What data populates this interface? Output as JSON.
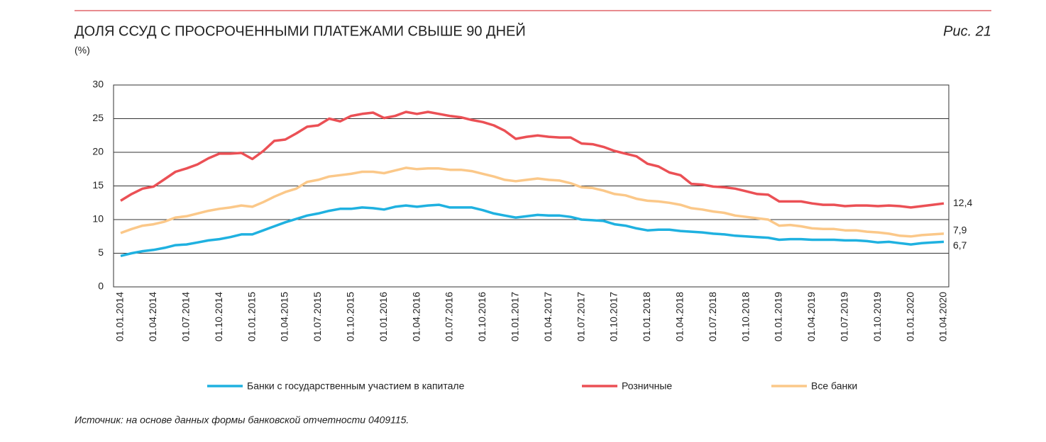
{
  "chart_data": {
    "type": "line",
    "title": "ДОЛЯ ССУД С ПРОСРОЧЕННЫМИ ПЛАТЕЖАМИ СВЫШЕ 90 ДНЕЙ",
    "subtitle": "(%)",
    "figure_label": "Рис. 21",
    "source": "Источник: на основе данных формы банковской отчетности 0409115.",
    "categories": [
      "01.01.2014",
      null,
      null,
      "01.04.2014",
      null,
      null,
      "01.07.2014",
      null,
      null,
      "01.10.2014",
      null,
      null,
      "01.01.2015",
      null,
      null,
      "01.04.2015",
      null,
      null,
      "01.07.2015",
      null,
      null,
      "01.10.2015",
      null,
      null,
      "01.01.2016",
      null,
      null,
      "01.04.2016",
      null,
      null,
      "01.07.2016",
      null,
      null,
      "01.10.2016",
      null,
      null,
      "01.01.2017",
      null,
      null,
      "01.04.2017",
      null,
      null,
      "01.07.2017",
      null,
      null,
      "01.10.2017",
      null,
      null,
      "01.01.2018",
      null,
      null,
      "01.04.2018",
      null,
      null,
      "01.07.2018",
      null,
      null,
      "01.10.2018",
      null,
      null,
      "01.01.2019",
      null,
      null,
      "01.04.2019",
      null,
      null,
      "01.07.2019",
      null,
      null,
      "01.10.2019",
      null,
      null,
      "01.01.2020",
      null,
      null,
      "01.04.2020"
    ],
    "series": [
      {
        "name": "Банки с государственным участием в капитале",
        "color": "#1fb1e0",
        "values": [
          4.6,
          5.0,
          5.3,
          5.5,
          5.8,
          6.2,
          6.3,
          6.6,
          6.9,
          7.1,
          7.4,
          7.8,
          7.8,
          8.4,
          9.0,
          9.6,
          10.1,
          10.6,
          10.9,
          11.3,
          11.6,
          11.6,
          11.8,
          11.7,
          11.5,
          11.9,
          12.1,
          11.9,
          12.1,
          12.2,
          11.8,
          11.8,
          11.8,
          11.4,
          10.9,
          10.6,
          10.3,
          10.5,
          10.7,
          10.6,
          10.6,
          10.4,
          10.0,
          9.9,
          9.8,
          9.3,
          9.1,
          8.7,
          8.4,
          8.5,
          8.5,
          8.3,
          8.2,
          8.1,
          7.9,
          7.8,
          7.6,
          7.5,
          7.4,
          7.3,
          7.0,
          7.1,
          7.1,
          7.0,
          7.0,
          7.0,
          6.9,
          6.9,
          6.8,
          6.6,
          6.7,
          6.5,
          6.3,
          6.5,
          6.6,
          6.7
        ],
        "value_labels": [
          null,
          null,
          null,
          null,
          null,
          null,
          null,
          null,
          null,
          null,
          null,
          null,
          null,
          null,
          null,
          null,
          null,
          null,
          null,
          null,
          null,
          null,
          null,
          null,
          null,
          null,
          null,
          null,
          null,
          null,
          null,
          null,
          null,
          null,
          null,
          null,
          null,
          null,
          null,
          null,
          null,
          null,
          null,
          null,
          null,
          null,
          null,
          null,
          null,
          null,
          null,
          null,
          null,
          null,
          null,
          null,
          null,
          null,
          null,
          null,
          null,
          null,
          null,
          null,
          null,
          null,
          null,
          null,
          null,
          null,
          null,
          null,
          null,
          null,
          null,
          "6,7"
        ]
      },
      {
        "name": "Розничные",
        "color": "#eb5055",
        "values": [
          12.8,
          13.8,
          14.6,
          14.9,
          16.0,
          17.1,
          17.6,
          18.2,
          19.1,
          19.8,
          19.8,
          19.9,
          19.0,
          20.2,
          21.7,
          21.9,
          22.8,
          23.8,
          24.0,
          25.0,
          24.6,
          25.4,
          25.7,
          25.9,
          25.1,
          25.4,
          26.0,
          25.7,
          26.0,
          25.7,
          25.4,
          25.2,
          24.8,
          24.5,
          24.0,
          23.2,
          22.0,
          22.3,
          22.5,
          22.3,
          22.2,
          22.2,
          21.3,
          21.2,
          20.8,
          20.2,
          19.8,
          19.4,
          18.3,
          17.9,
          17.0,
          16.6,
          15.3,
          15.2,
          14.9,
          14.8,
          14.6,
          14.2,
          13.8,
          13.7,
          12.7,
          12.7,
          12.7,
          12.4,
          12.2,
          12.2,
          12.0,
          12.1,
          12.1,
          12.0,
          12.1,
          12.0,
          11.8,
          12.0,
          12.2,
          12.4
        ],
        "value_labels": [
          null,
          null,
          null,
          null,
          null,
          null,
          null,
          null,
          null,
          null,
          null,
          null,
          null,
          null,
          null,
          null,
          null,
          null,
          null,
          null,
          null,
          null,
          null,
          null,
          null,
          null,
          null,
          null,
          null,
          null,
          null,
          null,
          null,
          null,
          null,
          null,
          null,
          null,
          null,
          null,
          null,
          null,
          null,
          null,
          null,
          null,
          null,
          null,
          null,
          null,
          null,
          null,
          null,
          null,
          null,
          null,
          null,
          null,
          null,
          null,
          null,
          null,
          null,
          null,
          null,
          null,
          null,
          null,
          null,
          null,
          null,
          null,
          null,
          null,
          null,
          "12,4"
        ]
      },
      {
        "name": "Все банки",
        "color": "#fbc889",
        "values": [
          8.0,
          8.6,
          9.1,
          9.3,
          9.7,
          10.3,
          10.5,
          10.9,
          11.3,
          11.6,
          11.8,
          12.1,
          11.9,
          12.6,
          13.4,
          14.1,
          14.6,
          15.6,
          15.9,
          16.4,
          16.6,
          16.8,
          17.1,
          17.1,
          16.9,
          17.3,
          17.7,
          17.5,
          17.6,
          17.6,
          17.4,
          17.4,
          17.2,
          16.8,
          16.4,
          15.9,
          15.7,
          15.9,
          16.1,
          15.9,
          15.8,
          15.4,
          14.8,
          14.7,
          14.3,
          13.8,
          13.6,
          13.1,
          12.8,
          12.7,
          12.5,
          12.2,
          11.7,
          11.5,
          11.2,
          11.0,
          10.6,
          10.4,
          10.2,
          10.0,
          9.1,
          9.2,
          9.0,
          8.7,
          8.6,
          8.6,
          8.4,
          8.4,
          8.2,
          8.1,
          7.9,
          7.6,
          7.5,
          7.7,
          7.8,
          7.9
        ],
        "value_labels": [
          null,
          null,
          null,
          null,
          null,
          null,
          null,
          null,
          null,
          null,
          null,
          null,
          null,
          null,
          null,
          null,
          null,
          null,
          null,
          null,
          null,
          null,
          null,
          null,
          null,
          null,
          null,
          null,
          null,
          null,
          null,
          null,
          null,
          null,
          null,
          null,
          null,
          null,
          null,
          null,
          null,
          null,
          null,
          null,
          null,
          null,
          null,
          null,
          null,
          null,
          null,
          null,
          null,
          null,
          null,
          null,
          null,
          null,
          null,
          null,
          null,
          null,
          null,
          null,
          null,
          null,
          null,
          null,
          null,
          null,
          null,
          null,
          null,
          null,
          null,
          "7,9"
        ]
      }
    ],
    "ylim": [
      0,
      30
    ],
    "yticks": [
      0,
      5,
      10,
      15,
      20,
      25,
      30
    ],
    "grid": true
  }
}
